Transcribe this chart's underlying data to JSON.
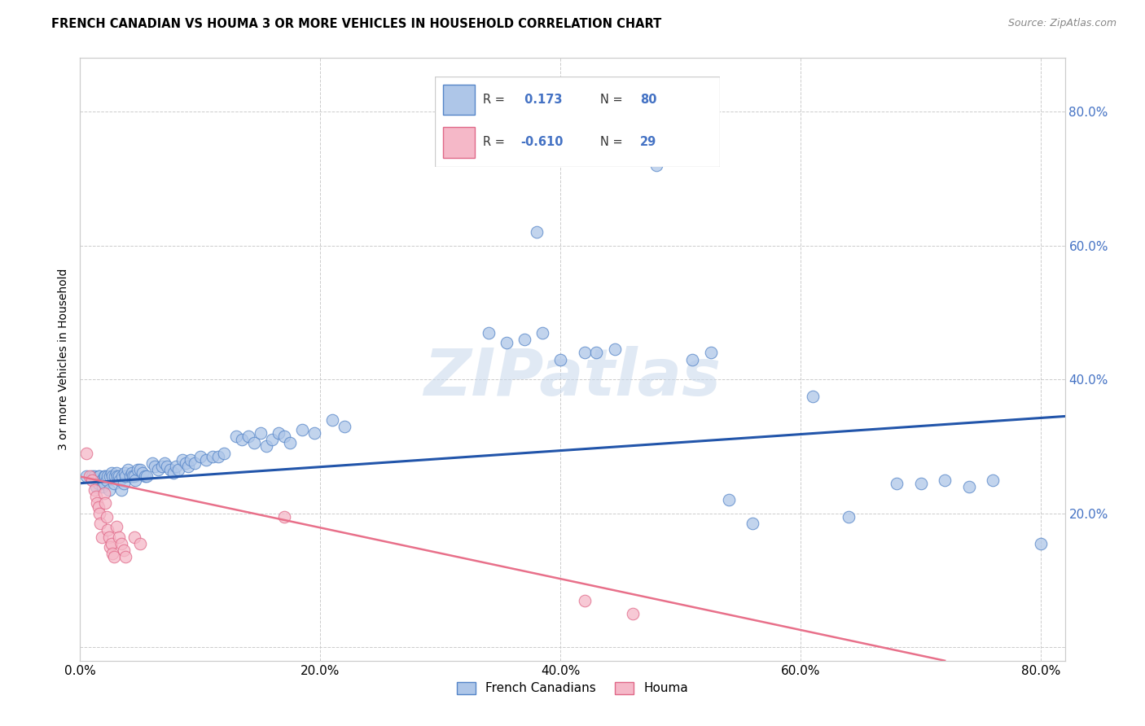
{
  "title": "FRENCH CANADIAN VS HOUMA 3 OR MORE VEHICLES IN HOUSEHOLD CORRELATION CHART",
  "source": "Source: ZipAtlas.com",
  "ylabel": "3 or more Vehicles in Household",
  "xlim": [
    0.0,
    0.82
  ],
  "ylim": [
    -0.02,
    0.88
  ],
  "blue_color": "#aec6e8",
  "pink_color": "#f5b8c8",
  "blue_edge_color": "#5585c8",
  "pink_edge_color": "#e06888",
  "blue_line_color": "#2255aa",
  "pink_line_color": "#e8708a",
  "blue_trend_x": [
    0.0,
    0.82
  ],
  "blue_trend_y": [
    0.245,
    0.345
  ],
  "pink_trend_x": [
    0.0,
    0.72
  ],
  "pink_trend_y": [
    0.255,
    -0.02
  ],
  "watermark": "ZIPatlas",
  "blue_scatter": [
    [
      0.005,
      0.255
    ],
    [
      0.01,
      0.255
    ],
    [
      0.012,
      0.255
    ],
    [
      0.013,
      0.24
    ],
    [
      0.015,
      0.255
    ],
    [
      0.015,
      0.245
    ],
    [
      0.016,
      0.255
    ],
    [
      0.018,
      0.25
    ],
    [
      0.019,
      0.24
    ],
    [
      0.02,
      0.255
    ],
    [
      0.02,
      0.245
    ],
    [
      0.021,
      0.255
    ],
    [
      0.022,
      0.25
    ],
    [
      0.023,
      0.255
    ],
    [
      0.024,
      0.235
    ],
    [
      0.025,
      0.255
    ],
    [
      0.026,
      0.26
    ],
    [
      0.027,
      0.255
    ],
    [
      0.028,
      0.245
    ],
    [
      0.029,
      0.255
    ],
    [
      0.03,
      0.26
    ],
    [
      0.031,
      0.255
    ],
    [
      0.032,
      0.255
    ],
    [
      0.033,
      0.25
    ],
    [
      0.034,
      0.235
    ],
    [
      0.035,
      0.255
    ],
    [
      0.036,
      0.245
    ],
    [
      0.037,
      0.26
    ],
    [
      0.038,
      0.255
    ],
    [
      0.04,
      0.265
    ],
    [
      0.042,
      0.255
    ],
    [
      0.043,
      0.26
    ],
    [
      0.044,
      0.255
    ],
    [
      0.045,
      0.255
    ],
    [
      0.046,
      0.25
    ],
    [
      0.048,
      0.265
    ],
    [
      0.05,
      0.265
    ],
    [
      0.052,
      0.26
    ],
    [
      0.054,
      0.255
    ],
    [
      0.055,
      0.255
    ],
    [
      0.06,
      0.275
    ],
    [
      0.062,
      0.27
    ],
    [
      0.065,
      0.265
    ],
    [
      0.068,
      0.27
    ],
    [
      0.07,
      0.275
    ],
    [
      0.072,
      0.27
    ],
    [
      0.075,
      0.265
    ],
    [
      0.078,
      0.26
    ],
    [
      0.08,
      0.27
    ],
    [
      0.082,
      0.265
    ],
    [
      0.085,
      0.28
    ],
    [
      0.088,
      0.275
    ],
    [
      0.09,
      0.27
    ],
    [
      0.092,
      0.28
    ],
    [
      0.095,
      0.275
    ],
    [
      0.1,
      0.285
    ],
    [
      0.105,
      0.28
    ],
    [
      0.11,
      0.285
    ],
    [
      0.115,
      0.285
    ],
    [
      0.12,
      0.29
    ],
    [
      0.13,
      0.315
    ],
    [
      0.135,
      0.31
    ],
    [
      0.14,
      0.315
    ],
    [
      0.145,
      0.305
    ],
    [
      0.15,
      0.32
    ],
    [
      0.155,
      0.3
    ],
    [
      0.16,
      0.31
    ],
    [
      0.165,
      0.32
    ],
    [
      0.17,
      0.315
    ],
    [
      0.175,
      0.305
    ],
    [
      0.185,
      0.325
    ],
    [
      0.195,
      0.32
    ],
    [
      0.21,
      0.34
    ],
    [
      0.22,
      0.33
    ],
    [
      0.34,
      0.47
    ],
    [
      0.355,
      0.455
    ],
    [
      0.37,
      0.46
    ],
    [
      0.385,
      0.47
    ],
    [
      0.4,
      0.43
    ],
    [
      0.42,
      0.44
    ],
    [
      0.43,
      0.44
    ],
    [
      0.445,
      0.445
    ],
    [
      0.38,
      0.62
    ],
    [
      0.48,
      0.72
    ],
    [
      0.51,
      0.43
    ],
    [
      0.525,
      0.44
    ],
    [
      0.54,
      0.22
    ],
    [
      0.56,
      0.185
    ],
    [
      0.61,
      0.375
    ],
    [
      0.64,
      0.195
    ],
    [
      0.68,
      0.245
    ],
    [
      0.7,
      0.245
    ],
    [
      0.72,
      0.25
    ],
    [
      0.74,
      0.24
    ],
    [
      0.76,
      0.25
    ],
    [
      0.8,
      0.155
    ]
  ],
  "pink_scatter": [
    [
      0.005,
      0.29
    ],
    [
      0.008,
      0.255
    ],
    [
      0.01,
      0.25
    ],
    [
      0.012,
      0.235
    ],
    [
      0.013,
      0.225
    ],
    [
      0.014,
      0.215
    ],
    [
      0.015,
      0.21
    ],
    [
      0.016,
      0.2
    ],
    [
      0.017,
      0.185
    ],
    [
      0.018,
      0.165
    ],
    [
      0.02,
      0.23
    ],
    [
      0.021,
      0.215
    ],
    [
      0.022,
      0.195
    ],
    [
      0.023,
      0.175
    ],
    [
      0.024,
      0.165
    ],
    [
      0.025,
      0.15
    ],
    [
      0.026,
      0.155
    ],
    [
      0.027,
      0.14
    ],
    [
      0.028,
      0.135
    ],
    [
      0.03,
      0.18
    ],
    [
      0.032,
      0.165
    ],
    [
      0.034,
      0.155
    ],
    [
      0.036,
      0.145
    ],
    [
      0.038,
      0.135
    ],
    [
      0.045,
      0.165
    ],
    [
      0.05,
      0.155
    ],
    [
      0.17,
      0.195
    ],
    [
      0.42,
      0.07
    ],
    [
      0.46,
      0.05
    ]
  ]
}
